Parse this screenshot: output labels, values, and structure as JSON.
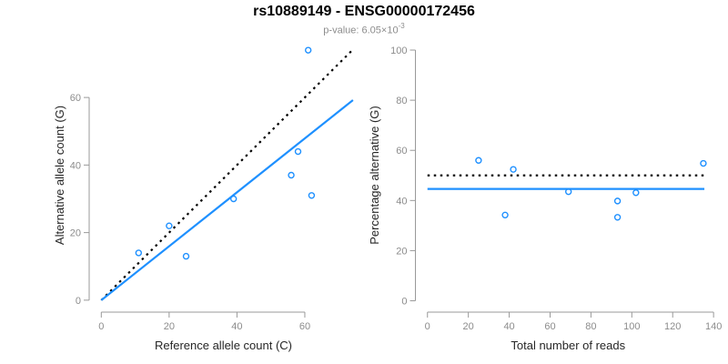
{
  "header": {
    "title": "rs10889149 - ENSG00000172456",
    "subtitle_text": "p-value: 6.05×10",
    "subtitle_exponent": "-3"
  },
  "colors": {
    "point": "#1E90FF",
    "fit_line": "#1E90FF",
    "reference_line": "#000000",
    "axis": "#999999",
    "tick_label": "#8c8c8c",
    "axis_title": "#262626"
  },
  "chart_data": [
    {
      "type": "scatter",
      "name": "allele-counts",
      "xlabel": "Reference allele count (C)",
      "ylabel": "Alternative allele count (G)",
      "xticks": [
        0,
        20,
        40,
        60
      ],
      "yticks": [
        0,
        20,
        40,
        60
      ],
      "xlim": [
        -2.5,
        74.5
      ],
      "ylim": [
        -3,
        77
      ],
      "points": [
        [
          11,
          14
        ],
        [
          20,
          22
        ],
        [
          25,
          13
        ],
        [
          39,
          30
        ],
        [
          56,
          37
        ],
        [
          58,
          44
        ],
        [
          61,
          74
        ],
        [
          62,
          31
        ]
      ],
      "lines": [
        {
          "name": "identity-line",
          "slope": 1,
          "intercept": 0,
          "x_range": [
            0,
            74.2
          ],
          "style": "dotted",
          "color_key": "reference_line"
        },
        {
          "name": "regression-line",
          "slope": 0.798,
          "intercept": 0,
          "x_range": [
            0,
            74.2
          ],
          "style": "solid",
          "color_key": "fit_line"
        }
      ],
      "legend": "none",
      "grid": false
    },
    {
      "type": "scatter",
      "name": "percentage-vs-reads",
      "xlabel": "Total number of reads",
      "ylabel": "Percentage alternative (G)",
      "xticks": [
        0,
        20,
        40,
        60,
        80,
        100,
        120,
        140
      ],
      "yticks": [
        0,
        20,
        40,
        60,
        80,
        100
      ],
      "xlim": [
        -5.9,
        143.5
      ],
      "ylim": [
        -3.8,
        104
      ],
      "points": [
        [
          25,
          56
        ],
        [
          38,
          34.2
        ],
        [
          42,
          52.4
        ],
        [
          69,
          43.5
        ],
        [
          93,
          39.8
        ],
        [
          93,
          33.3
        ],
        [
          102,
          43.1
        ],
        [
          135,
          54.8
        ]
      ],
      "lines": [
        {
          "name": "expected-percentage-line",
          "slope": 0,
          "intercept": 50,
          "x_range": [
            0,
            135.5
          ],
          "style": "dotted",
          "color_key": "reference_line"
        },
        {
          "name": "mean-percentage-line",
          "slope": 0,
          "intercept": 44.6,
          "x_range": [
            0,
            135.5
          ],
          "style": "solid",
          "color_key": "fit_line"
        }
      ],
      "legend": "none",
      "grid": false
    }
  ]
}
